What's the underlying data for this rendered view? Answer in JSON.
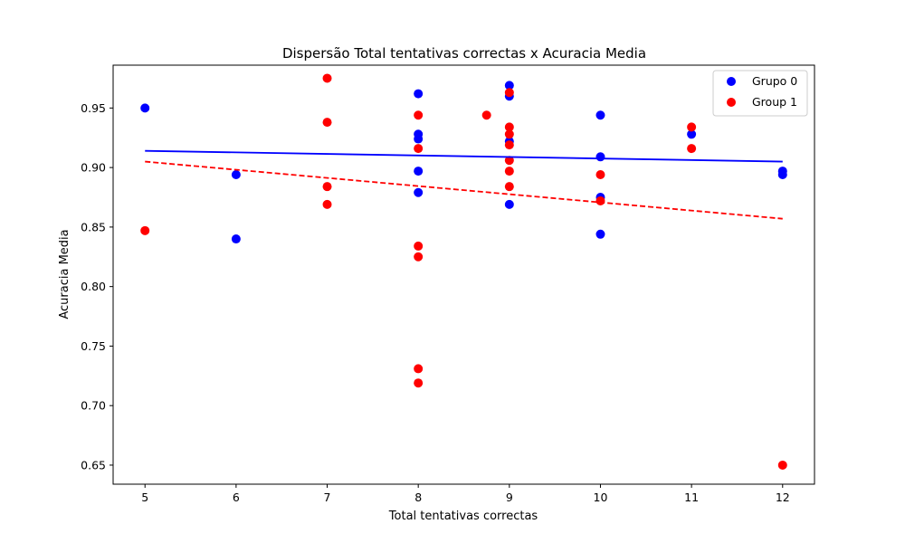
{
  "chart_data": {
    "type": "scatter",
    "title": "Dispersão Total tentativas correctas x Acuracia Media",
    "xlabel": "Total tentativas correctas",
    "ylabel": "Acuracia Media",
    "xlim": [
      4.65,
      12.35
    ],
    "ylim": [
      0.634,
      0.986
    ],
    "xticks": [
      "5",
      "6",
      "7",
      "8",
      "9",
      "10",
      "11",
      "12"
    ],
    "yticks": [
      "0.65",
      "0.70",
      "0.75",
      "0.80",
      "0.85",
      "0.90",
      "0.95"
    ],
    "grid": false,
    "legend_position": "top-right",
    "series": [
      {
        "name": "Grupo 0",
        "color": "#0000ff",
        "points": [
          [
            5,
            0.95
          ],
          [
            6,
            0.894
          ],
          [
            6,
            0.84
          ],
          [
            8,
            0.962
          ],
          [
            8,
            0.928
          ],
          [
            8,
            0.924
          ],
          [
            8,
            0.897
          ],
          [
            8,
            0.879
          ],
          [
            9,
            0.969
          ],
          [
            9,
            0.96
          ],
          [
            9,
            0.922
          ],
          [
            9,
            0.869
          ],
          [
            10,
            0.944
          ],
          [
            10,
            0.909
          ],
          [
            10,
            0.875
          ],
          [
            10,
            0.844
          ],
          [
            11,
            0.928
          ],
          [
            12,
            0.897
          ],
          [
            12,
            0.894
          ]
        ],
        "trend": {
          "x": [
            5,
            12
          ],
          "y": [
            0.914,
            0.905
          ],
          "style": "solid"
        }
      },
      {
        "name": "Group 1",
        "color": "#ff0000",
        "points": [
          [
            5,
            0.847
          ],
          [
            7,
            0.975
          ],
          [
            7,
            0.938
          ],
          [
            7,
            0.884
          ],
          [
            7,
            0.869
          ],
          [
            8,
            0.944
          ],
          [
            8,
            0.916
          ],
          [
            8,
            0.834
          ],
          [
            8,
            0.825
          ],
          [
            8,
            0.731
          ],
          [
            8,
            0.719
          ],
          [
            8.75,
            0.944
          ],
          [
            9,
            0.963
          ],
          [
            9,
            0.934
          ],
          [
            9,
            0.928
          ],
          [
            9,
            0.919
          ],
          [
            9,
            0.906
          ],
          [
            9,
            0.897
          ],
          [
            9,
            0.884
          ],
          [
            10,
            0.894
          ],
          [
            10,
            0.872
          ],
          [
            11,
            0.934
          ],
          [
            11,
            0.916
          ],
          [
            12,
            0.65
          ]
        ],
        "trend": {
          "x": [
            5,
            12
          ],
          "y": [
            0.905,
            0.857
          ],
          "style": "dashed"
        }
      }
    ]
  }
}
